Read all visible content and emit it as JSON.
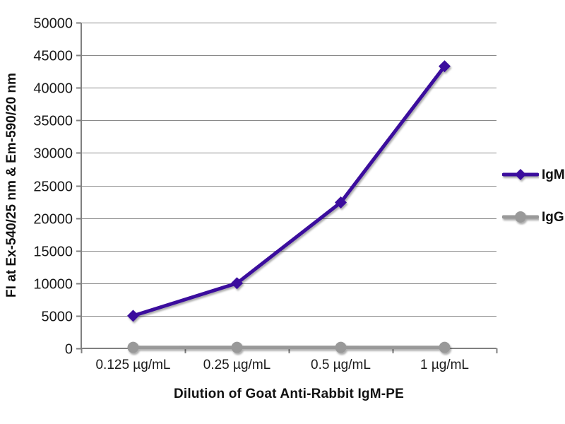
{
  "chart_data": {
    "type": "line",
    "title": "",
    "xlabel": "Dilution of Goat Anti-Rabbit IgM-PE",
    "ylabel": "FI at Ex-540/25 nm & Em-590/20 nm",
    "categories": [
      "0.125 µg/mL",
      "0.25 µg/mL",
      "0.5 µg/mL",
      "1 µg/mL"
    ],
    "series": [
      {
        "name": "IgM",
        "values": [
          5000,
          10000,
          22400,
          43300
        ],
        "color": "#3a0b9d",
        "marker": "diamond"
      },
      {
        "name": "IgG",
        "values": [
          150,
          150,
          150,
          150
        ],
        "color": "#999999",
        "marker": "circle"
      }
    ],
    "ylim": [
      0,
      50000
    ],
    "ytick_step": 5000,
    "ytick_labels": [
      "0",
      "5000",
      "10000",
      "15000",
      "20000",
      "25000",
      "30000",
      "35000",
      "40000",
      "45000",
      "50000"
    ],
    "grid": true,
    "legend_position": "right",
    "colors": {
      "gridline": "#8a8a8a",
      "axis": "#808080",
      "text": "#1a1a1a"
    }
  }
}
